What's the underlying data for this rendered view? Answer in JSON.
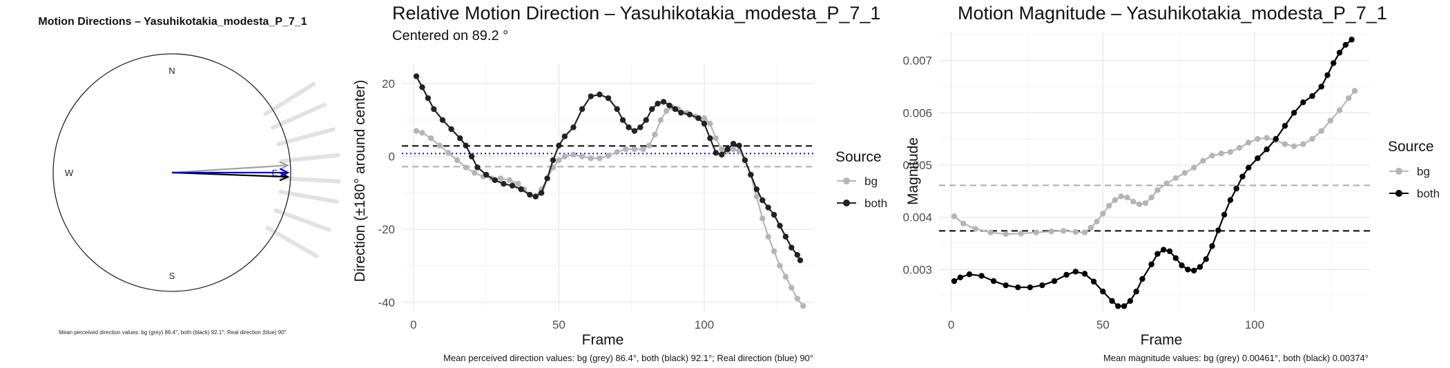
{
  "chart_data": [
    {
      "type": "polar",
      "title": "Motion Directions – Yasuhikotakia_modesta_P_7_1",
      "compass": [
        "N",
        "E",
        "S",
        "W"
      ],
      "arrows": [
        {
          "name": "bg",
          "angle_deg": 86.4,
          "color": "#a0a0a0"
        },
        {
          "name": "both",
          "angle_deg": 92.1,
          "color": "#000000"
        },
        {
          "name": "real",
          "angle_deg": 90,
          "color": "#0000cc"
        }
      ],
      "caption": "Mean perceived direction values: bg (grey) 86.4°, both (black) 92.1°; Real direction (blue) 90°"
    },
    {
      "type": "line",
      "title": "Relative Motion Direction – Yasuhikotakia_modesta_P_7_1",
      "subtitle": "Centered on  89.2 °",
      "xlabel": "Frame",
      "ylabel": "Direction (±180° around center)",
      "xlim": [
        -4,
        138
      ],
      "ylim": [
        -42.5,
        25.5
      ],
      "xticks": [
        0,
        50,
        100
      ],
      "yticks": [
        -40,
        -20,
        0,
        20
      ],
      "legend_title": "Source",
      "legend": [
        "bg",
        "both"
      ],
      "hlines": [
        {
          "name": "bg",
          "y": -2.8,
          "style": "dashed",
          "color": "#aaaaaa"
        },
        {
          "name": "both",
          "y": 2.9,
          "style": "dashed",
          "color": "#000000"
        },
        {
          "name": "real",
          "y": 0.8,
          "style": "dotted",
          "color": "#0000ff"
        }
      ],
      "series": [
        {
          "name": "bg",
          "color": "#b5b5b5",
          "points": [
            [
              1,
              7
            ],
            [
              3,
              6.5
            ],
            [
              6,
              5
            ],
            [
              9,
              3
            ],
            [
              12,
              1
            ],
            [
              15,
              -1
            ],
            [
              18,
              -3
            ],
            [
              21,
              -4.5
            ],
            [
              24,
              -5.5
            ],
            [
              27,
              -6
            ],
            [
              30,
              -6
            ],
            [
              33,
              -6.5
            ],
            [
              36,
              -7.5
            ],
            [
              38,
              -9
            ],
            [
              40,
              -10.5
            ],
            [
              42,
              -11
            ],
            [
              44,
              -9
            ],
            [
              46,
              -6
            ],
            [
              48,
              -3
            ],
            [
              50,
              -1
            ],
            [
              52,
              0
            ],
            [
              55,
              0.5
            ],
            [
              58,
              0
            ],
            [
              61,
              -0.5
            ],
            [
              64,
              -0.5
            ],
            [
              67,
              0.2
            ],
            [
              70,
              1.2
            ],
            [
              73,
              2
            ],
            [
              76,
              2
            ],
            [
              79,
              2
            ],
            [
              81,
              3
            ],
            [
              83,
              6
            ],
            [
              85,
              10
            ],
            [
              87,
              12.5
            ],
            [
              89,
              13.5
            ],
            [
              91,
              13
            ],
            [
              94,
              12
            ],
            [
              97,
              11
            ],
            [
              100,
              10.5
            ],
            [
              102,
              9
            ],
            [
              104,
              5
            ],
            [
              106,
              2
            ],
            [
              108,
              1.5
            ],
            [
              110,
              2
            ],
            [
              112,
              1.5
            ],
            [
              114,
              -1
            ],
            [
              116,
              -5
            ],
            [
              118,
              -11
            ],
            [
              120,
              -17
            ],
            [
              122,
              -22
            ],
            [
              124,
              -26
            ],
            [
              126,
              -30
            ],
            [
              128,
              -33
            ],
            [
              130,
              -36
            ],
            [
              132,
              -39
            ],
            [
              134,
              -41
            ]
          ]
        },
        {
          "name": "both",
          "color": "#222222",
          "points": [
            [
              1,
              22
            ],
            [
              3,
              19
            ],
            [
              5,
              16
            ],
            [
              7,
              13
            ],
            [
              10,
              10
            ],
            [
              13,
              7.5
            ],
            [
              16,
              5
            ],
            [
              18,
              3
            ],
            [
              20,
              0
            ],
            [
              22,
              -3
            ],
            [
              25,
              -5
            ],
            [
              28,
              -6.5
            ],
            [
              31,
              -7.5
            ],
            [
              34,
              -8
            ],
            [
              37,
              -9
            ],
            [
              40,
              -10.5
            ],
            [
              42,
              -11
            ],
            [
              44,
              -10
            ],
            [
              46,
              -6
            ],
            [
              48,
              -1
            ],
            [
              50,
              3
            ],
            [
              52,
              5.5
            ],
            [
              55,
              8
            ],
            [
              58,
              13
            ],
            [
              61,
              16.5
            ],
            [
              64,
              17
            ],
            [
              67,
              16
            ],
            [
              70,
              13
            ],
            [
              72,
              10
            ],
            [
              74,
              8
            ],
            [
              76,
              7
            ],
            [
              78,
              8
            ],
            [
              80,
              10
            ],
            [
              82,
              13
            ],
            [
              84,
              14.5
            ],
            [
              86,
              15
            ],
            [
              88,
              14
            ],
            [
              90,
              13
            ],
            [
              92,
              12
            ],
            [
              95,
              11.5
            ],
            [
              98,
              10.5
            ],
            [
              100,
              9
            ],
            [
              102,
              5
            ],
            [
              104,
              1
            ],
            [
              106,
              0.5
            ],
            [
              108,
              2
            ],
            [
              110,
              3.5
            ],
            [
              112,
              3
            ],
            [
              114,
              -1
            ],
            [
              116,
              -5
            ],
            [
              118,
              -9
            ],
            [
              120,
              -12
            ],
            [
              122,
              -14
            ],
            [
              124,
              -16
            ],
            [
              126,
              -19
            ],
            [
              128,
              -22
            ],
            [
              130,
              -25
            ],
            [
              132,
              -27
            ],
            [
              133,
              -28.5
            ]
          ]
        }
      ],
      "caption": "Mean perceived direction values: bg (grey) 86.4°, both (black) 92.1°; Real direction (blue) 90°"
    },
    {
      "type": "line",
      "title": "Motion Magnitude – Yasuhikotakia_modesta_P_7_1",
      "xlabel": "Frame",
      "ylabel": "Magnitude",
      "xlim": [
        -4,
        138
      ],
      "ylim": [
        0.0022,
        0.00755
      ],
      "xticks": [
        0,
        50,
        100
      ],
      "yticks": [
        0.003,
        0.004,
        0.005,
        0.006,
        0.007
      ],
      "legend_title": "Source",
      "legend": [
        "bg",
        "both"
      ],
      "hlines": [
        {
          "name": "bg",
          "y": 0.00461,
          "style": "dashed",
          "color": "#aaaaaa"
        },
        {
          "name": "both",
          "y": 0.00374,
          "style": "dashed",
          "color": "#000000"
        }
      ],
      "series": [
        {
          "name": "bg",
          "color": "#b5b5b5",
          "points": [
            [
              1,
              0.00402
            ],
            [
              4,
              0.00388
            ],
            [
              8,
              0.00378
            ],
            [
              13,
              0.00371
            ],
            [
              18,
              0.00368
            ],
            [
              23,
              0.00369
            ],
            [
              28,
              0.00371
            ],
            [
              33,
              0.00373
            ],
            [
              37,
              0.00374
            ],
            [
              41,
              0.00372
            ],
            [
              44,
              0.00371
            ],
            [
              46,
              0.0038
            ],
            [
              48,
              0.00392
            ],
            [
              50,
              0.00407
            ],
            [
              52,
              0.00422
            ],
            [
              54,
              0.00433
            ],
            [
              56,
              0.0044
            ],
            [
              58,
              0.00438
            ],
            [
              60,
              0.0043
            ],
            [
              62,
              0.00425
            ],
            [
              64,
              0.00427
            ],
            [
              66,
              0.00438
            ],
            [
              68,
              0.00452
            ],
            [
              71,
              0.00465
            ],
            [
              74,
              0.00475
            ],
            [
              77,
              0.00485
            ],
            [
              80,
              0.00495
            ],
            [
              83,
              0.00508
            ],
            [
              86,
              0.00518
            ],
            [
              89,
              0.00522
            ],
            [
              92,
              0.00525
            ],
            [
              95,
              0.00533
            ],
            [
              98,
              0.00543
            ],
            [
              101,
              0.0055
            ],
            [
              104,
              0.00552
            ],
            [
              107,
              0.00547
            ],
            [
              110,
              0.0054
            ],
            [
              113,
              0.00536
            ],
            [
              116,
              0.0054
            ],
            [
              119,
              0.0055
            ],
            [
              122,
              0.00565
            ],
            [
              125,
              0.00585
            ],
            [
              128,
              0.00605
            ],
            [
              131,
              0.00628
            ],
            [
              133,
              0.00642
            ]
          ]
        },
        {
          "name": "both",
          "color": "#000000",
          "points": [
            [
              1,
              0.00278
            ],
            [
              3,
              0.00285
            ],
            [
              6,
              0.00291
            ],
            [
              10,
              0.00288
            ],
            [
              14,
              0.00278
            ],
            [
              18,
              0.0027
            ],
            [
              22,
              0.00266
            ],
            [
              26,
              0.00266
            ],
            [
              30,
              0.0027
            ],
            [
              34,
              0.00278
            ],
            [
              38,
              0.0029
            ],
            [
              41,
              0.00296
            ],
            [
              44,
              0.00292
            ],
            [
              47,
              0.00277
            ],
            [
              50,
              0.00258
            ],
            [
              53,
              0.0024
            ],
            [
              55,
              0.0023
            ],
            [
              57,
              0.0023
            ],
            [
              59,
              0.0024
            ],
            [
              61,
              0.00258
            ],
            [
              63,
              0.00282
            ],
            [
              66,
              0.0031
            ],
            [
              68,
              0.0033
            ],
            [
              70,
              0.00338
            ],
            [
              72,
              0.00335
            ],
            [
              74,
              0.00322
            ],
            [
              76,
              0.00308
            ],
            [
              78,
              0.003
            ],
            [
              80,
              0.00298
            ],
            [
              82,
              0.00305
            ],
            [
              84,
              0.0032
            ],
            [
              86,
              0.00345
            ],
            [
              88,
              0.00375
            ],
            [
              90,
              0.00405
            ],
            [
              92,
              0.00433
            ],
            [
              94,
              0.00455
            ],
            [
              96,
              0.00478
            ],
            [
              98,
              0.00495
            ],
            [
              101,
              0.00513
            ],
            [
              104,
              0.0053
            ],
            [
              107,
              0.0055
            ],
            [
              110,
              0.00575
            ],
            [
              113,
              0.006
            ],
            [
              116,
              0.0062
            ],
            [
              119,
              0.00632
            ],
            [
              122,
              0.0065
            ],
            [
              124,
              0.00672
            ],
            [
              126,
              0.00695
            ],
            [
              128,
              0.00715
            ],
            [
              130,
              0.0073
            ],
            [
              132,
              0.0074
            ]
          ]
        }
      ],
      "caption": "Mean magnitude values: bg (grey) 0.00461°, both (black) 0.00374°"
    }
  ]
}
